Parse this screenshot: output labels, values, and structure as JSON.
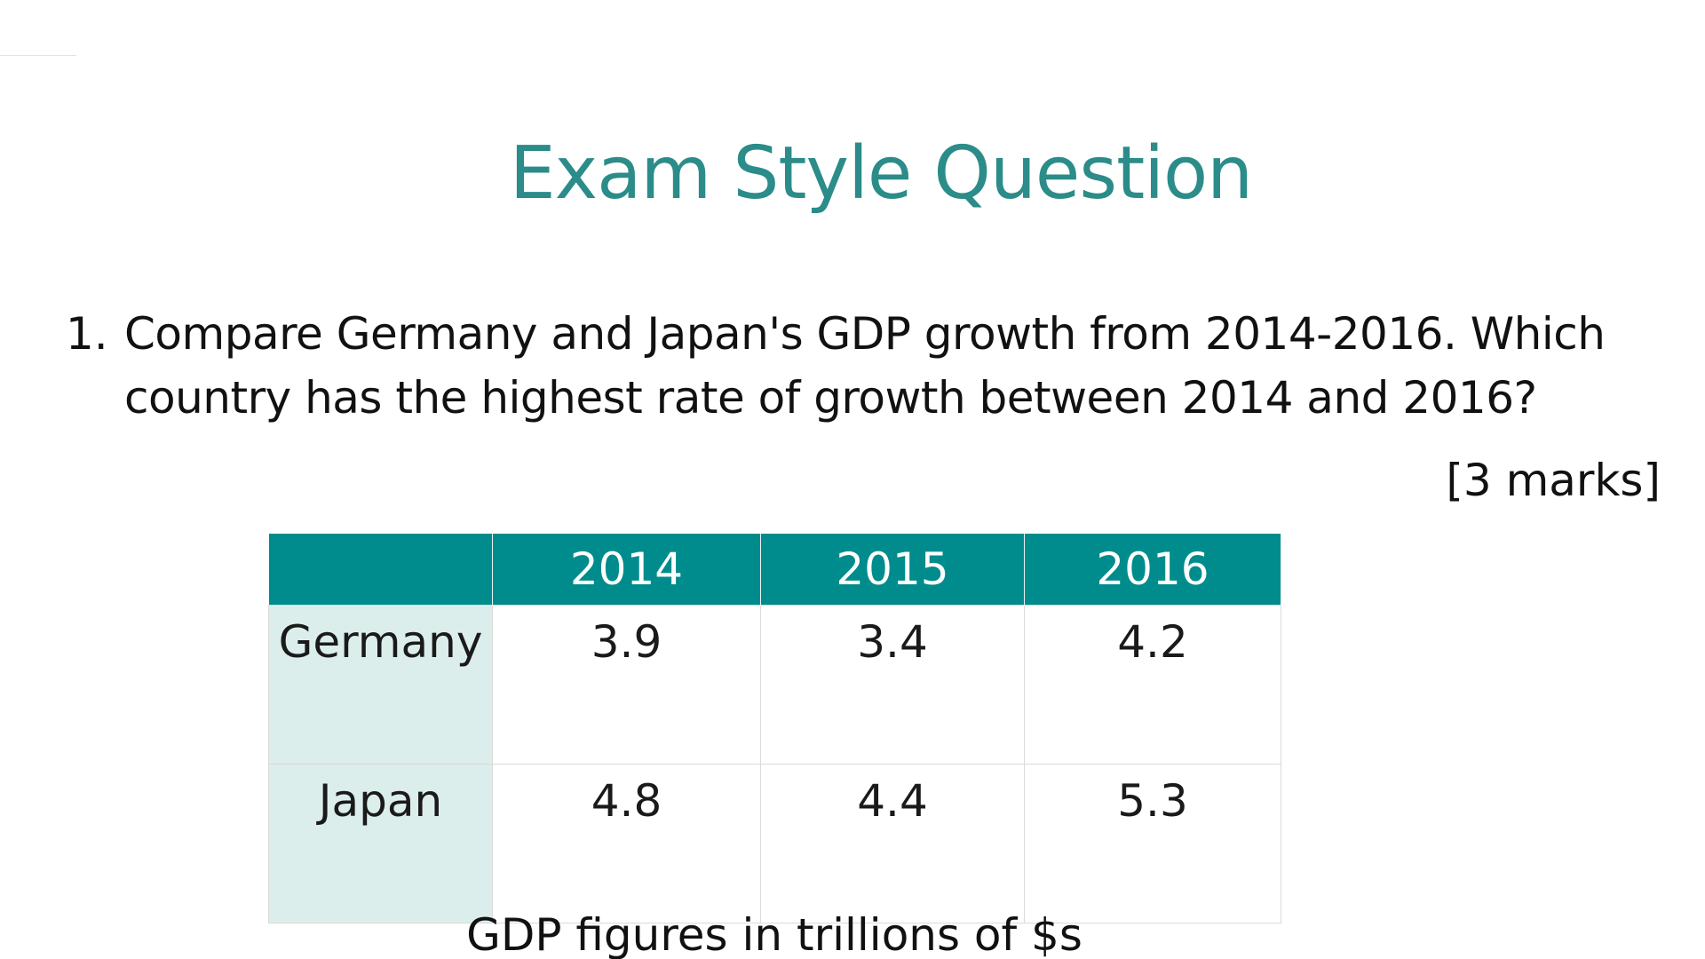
{
  "slide": {
    "title": "Exam Style Question",
    "question_number": "1.",
    "question_text": "Compare Germany and Japan's GDP growth from 2014-2016. Which country has the highest rate of growth between 2014 and 2016?",
    "marks": "[3 marks]",
    "caption": "GDP figures in trillions of $s"
  },
  "table": {
    "headers": [
      "",
      "2014",
      "2015",
      "2016"
    ],
    "rows": [
      {
        "label": "Germany",
        "values": [
          "3.9",
          "3.4",
          "4.2"
        ]
      },
      {
        "label": "Japan",
        "values": [
          "4.8",
          "4.4",
          "5.3"
        ]
      }
    ]
  },
  "colors": {
    "title": "#2b8c89",
    "header_bg": "#008c8c",
    "row_label_bg": "#dbeeeb"
  }
}
